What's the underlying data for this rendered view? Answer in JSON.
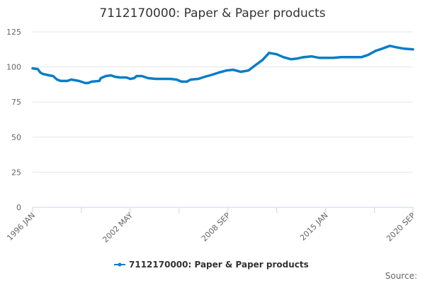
{
  "chart_data": {
    "type": "line",
    "title": "7112170000: Paper & Paper products",
    "xlabel": "",
    "ylabel": "",
    "ylim": [
      0,
      125
    ],
    "yticks": [
      0,
      25,
      50,
      75,
      100,
      125
    ],
    "xlim": [
      "1996-01",
      "2020-09"
    ],
    "xtick_labels": [
      "1996 JAN",
      "2002 MAY",
      "2008 SEP",
      "2015 JAN",
      "2020 SEP"
    ],
    "xtick_dates": [
      "1996-01",
      "2002-05",
      "2008-09",
      "2015-01",
      "2020-09"
    ],
    "grid": "horizontal",
    "legend_placement": "bottom",
    "series": [
      {
        "name": "7112170000: Paper & Paper products",
        "color": "#0a7dc6",
        "x": [
          "1996-01",
          "1996-05",
          "1996-07",
          "1996-09",
          "1997-02",
          "1997-05",
          "1997-08",
          "1997-11",
          "1998-04",
          "1998-07",
          "1998-10",
          "1999-01",
          "1999-06",
          "1999-08",
          "1999-11",
          "2000-05",
          "2000-06",
          "2000-10",
          "2001-02",
          "2001-05",
          "2001-09",
          "2002-02",
          "2002-05",
          "2002-08",
          "2002-10",
          "2003-02",
          "2003-07",
          "2004-01",
          "2004-06",
          "2004-12",
          "2005-05",
          "2005-09",
          "2006-01",
          "2006-04",
          "2006-10",
          "2007-03",
          "2007-09",
          "2008-02",
          "2008-08",
          "2009-01",
          "2009-07",
          "2010-01",
          "2010-06",
          "2010-12",
          "2011-05",
          "2011-11",
          "2012-04",
          "2012-10",
          "2013-03",
          "2013-08",
          "2014-02",
          "2014-08",
          "2015-01",
          "2015-07",
          "2016-01",
          "2016-06",
          "2016-12",
          "2017-05",
          "2017-10",
          "2018-04",
          "2018-09",
          "2019-03",
          "2019-08",
          "2020-02",
          "2020-09"
        ],
        "values": [
          99,
          98.5,
          96,
          95,
          94,
          93.5,
          91,
          90,
          90,
          91,
          90.5,
          90,
          88.5,
          88.5,
          89.5,
          90,
          92,
          93.5,
          94,
          93,
          92.5,
          92.5,
          91.5,
          92,
          93.5,
          93.5,
          92,
          91.5,
          91.5,
          91.5,
          91,
          89.5,
          89.5,
          91,
          91.5,
          93,
          94.5,
          96,
          97.5,
          98,
          96.5,
          97.5,
          101,
          105,
          110,
          109,
          107,
          105.5,
          106,
          107,
          107.5,
          106.5,
          106.5,
          106.5,
          107,
          107,
          107,
          107,
          108.5,
          111.5,
          113,
          115,
          114,
          113,
          112.5
        ]
      }
    ]
  },
  "source_label": "Source:"
}
